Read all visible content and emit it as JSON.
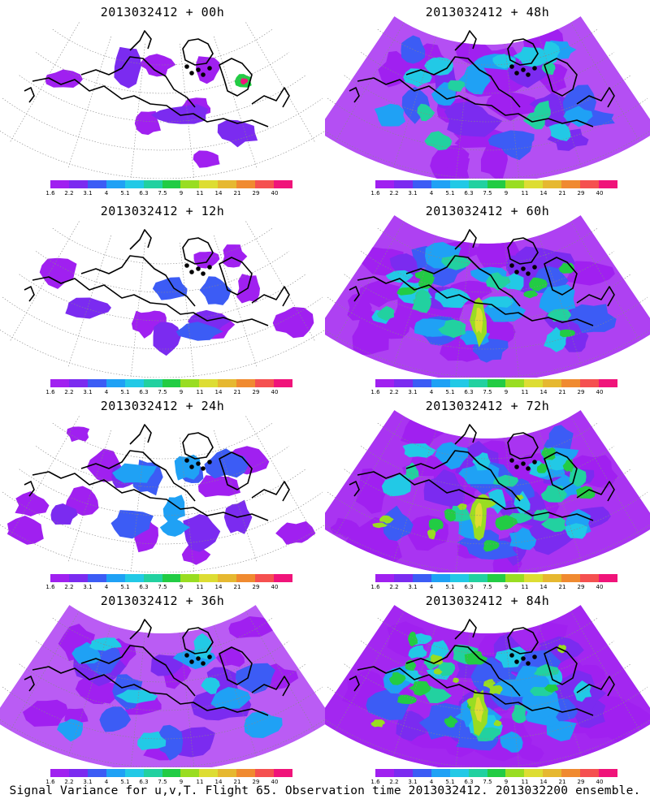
{
  "panels": [
    {
      "title": "2013032412 + 00h",
      "lead": 0
    },
    {
      "title": "2013032412 + 48h",
      "lead": 48
    },
    {
      "title": "2013032412 + 12h",
      "lead": 12
    },
    {
      "title": "2013032412 + 60h",
      "lead": 60
    },
    {
      "title": "2013032412 + 24h",
      "lead": 24
    },
    {
      "title": "2013032412 + 72h",
      "lead": 72
    },
    {
      "title": "2013032412 + 36h",
      "lead": 36
    },
    {
      "title": "2013032412 + 84h",
      "lead": 84
    }
  ],
  "colorbar": {
    "labels": [
      "1.6",
      "2.2",
      "3.1",
      "4",
      "5.1",
      "6.3",
      "7.5",
      "9",
      "11",
      "14",
      "21",
      "29",
      "40"
    ],
    "colors": [
      "#a020f0",
      "#7b2bf0",
      "#3c5cf5",
      "#1fa1f5",
      "#22c9e6",
      "#22d1a0",
      "#22cc44",
      "#99dd22",
      "#dddd33",
      "#e6b830",
      "#f08a30",
      "#f55050",
      "#f0147a"
    ]
  },
  "footer": "Signal Variance for u,v,T. Flight 65. Observation time 2013032412. 2013032200 ensemble."
}
